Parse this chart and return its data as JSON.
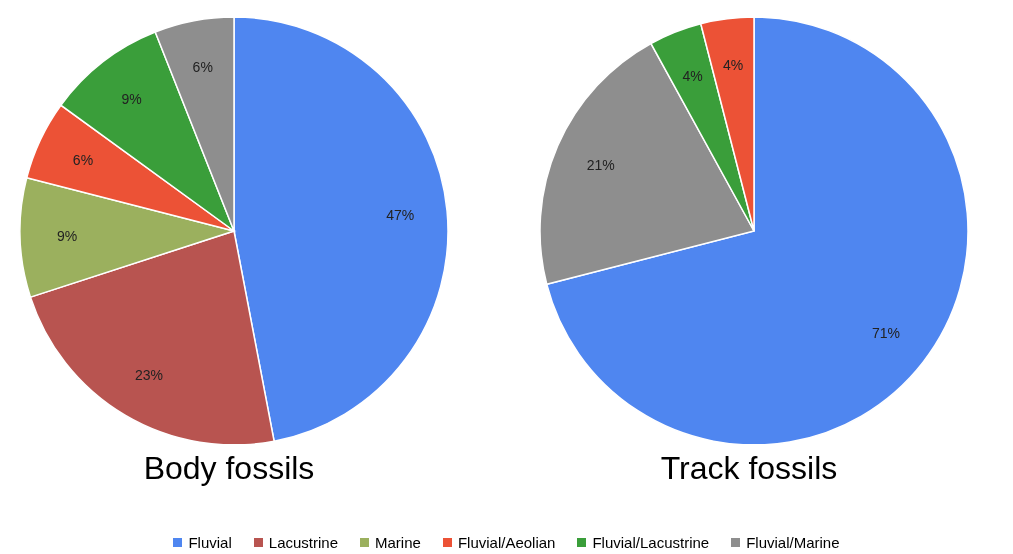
{
  "chart_data": [
    {
      "type": "pie",
      "title": "Body fossils",
      "categories": [
        "Fluvial",
        "Lacustrine",
        "Marine",
        "Fluvial/Aeolian",
        "Fluvial/Lacustrine",
        "Fluvial/Marine"
      ],
      "values": [
        47,
        23,
        9,
        6,
        9,
        6
      ],
      "colors": [
        "#4f86f0",
        "#b85450",
        "#9bb05e",
        "#ec5236",
        "#3a9e3a",
        "#8e8e8e"
      ],
      "value_labels": [
        "47%",
        "23%",
        "9%",
        "6%",
        "9%",
        "6%"
      ],
      "legend": "bottom"
    },
    {
      "type": "pie",
      "title": "Track fossils",
      "categories": [
        null,
        null,
        null,
        null
      ],
      "values": [
        71,
        21,
        4,
        4
      ],
      "colors": [
        "#4f86f0",
        "#8e8e8e",
        "#3a9e3a",
        "#ec5236"
      ],
      "value_labels": [
        "71%",
        "21%",
        "4%",
        "4%"
      ]
    }
  ]
}
